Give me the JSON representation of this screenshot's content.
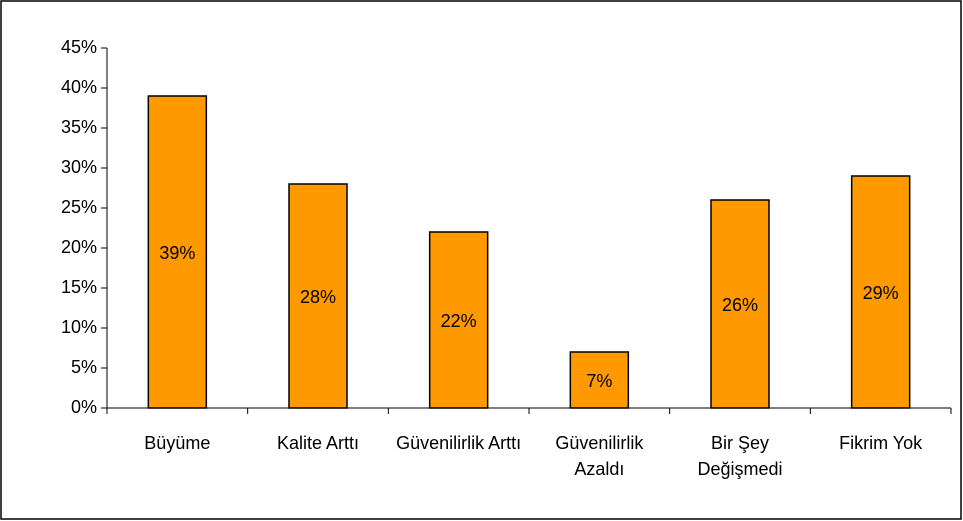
{
  "chart_data": {
    "type": "bar",
    "categories": [
      "Büyüme",
      "Kalite Arttı",
      "Güvenilirlik Arttı",
      "Güvenilirlik Azaldı",
      "Bir Şey Değişmedi",
      "Fikrim Yok"
    ],
    "values": [
      39,
      28,
      22,
      7,
      26,
      29
    ],
    "value_labels": [
      "39%",
      "28%",
      "22%",
      "7%",
      "26%",
      "29%"
    ],
    "color": "#ff9900",
    "ylim": [
      0,
      45
    ],
    "yticks": [
      {
        "value": 0,
        "label": "0%"
      },
      {
        "value": 5,
        "label": "5%"
      },
      {
        "value": 10,
        "label": "10%"
      },
      {
        "value": 15,
        "label": "15%"
      },
      {
        "value": 20,
        "label": "20%"
      },
      {
        "value": 25,
        "label": "25%"
      },
      {
        "value": 30,
        "label": "30%"
      },
      {
        "value": 35,
        "label": "35%"
      },
      {
        "value": 40,
        "label": "40%"
      },
      {
        "value": 45,
        "label": "45%"
      }
    ],
    "grid": false
  }
}
